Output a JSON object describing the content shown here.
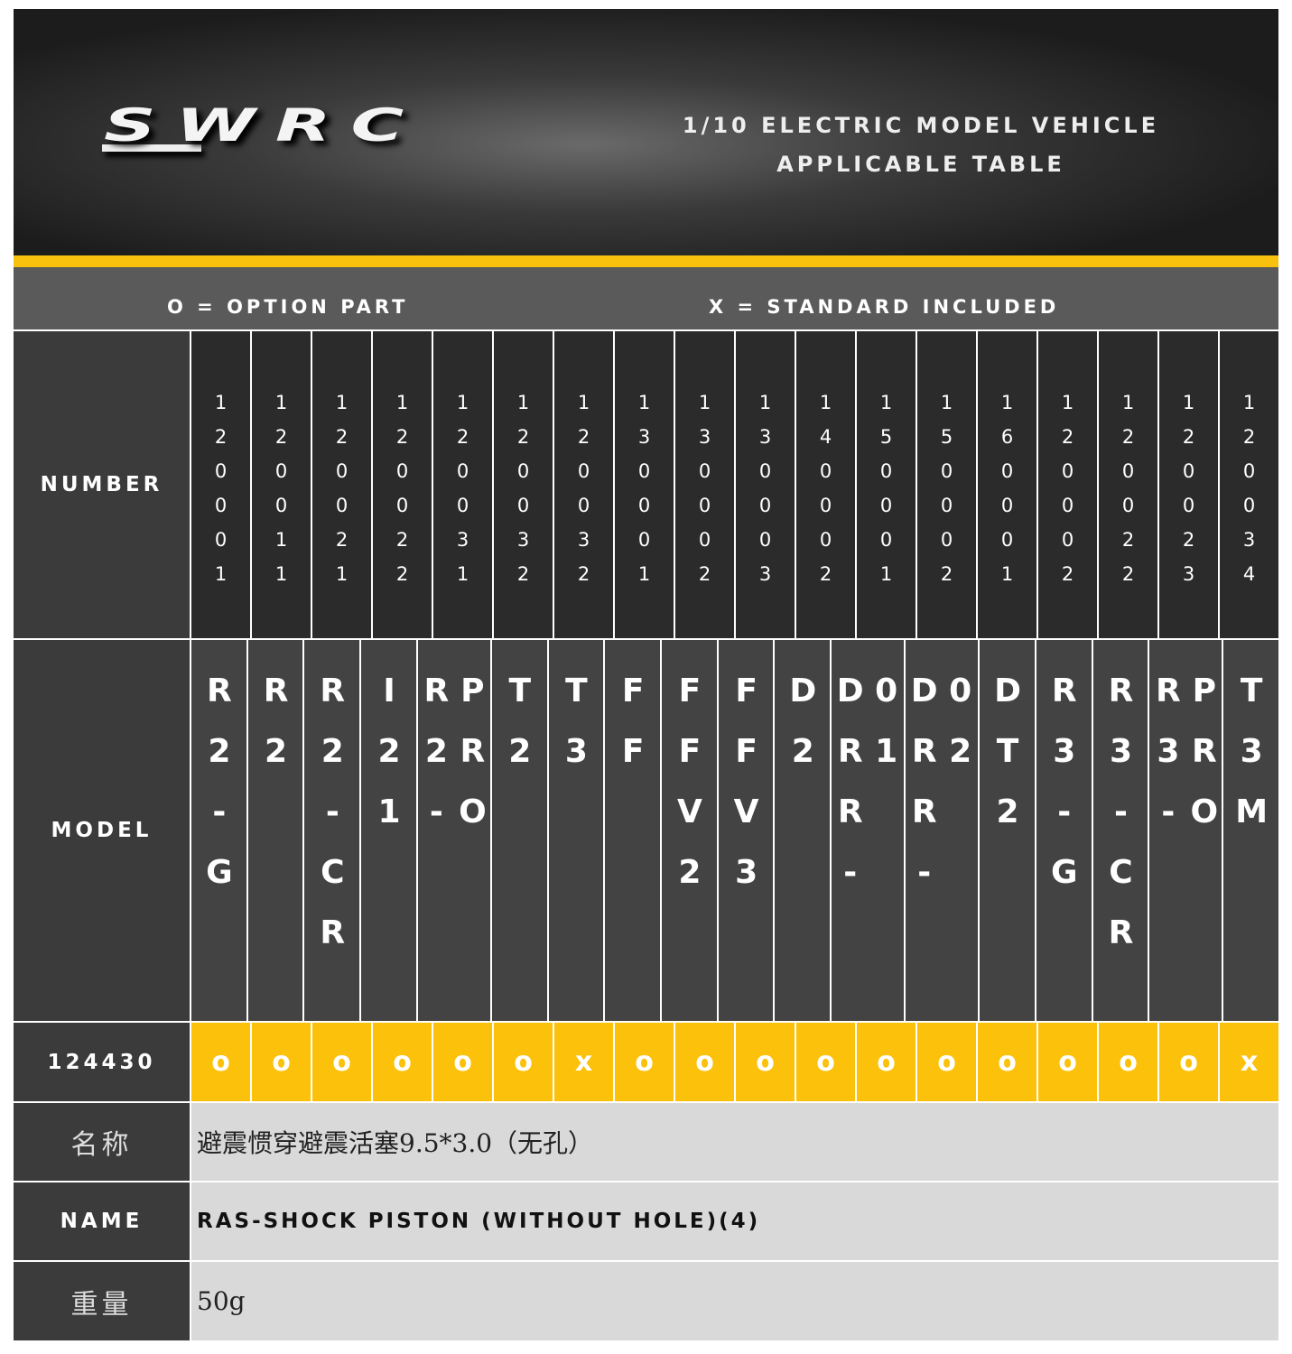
{
  "header": {
    "logo": "SWRC",
    "title_line1": "1/10 ELECTRIC MODEL VEHICLE",
    "title_line2": "APPLICABLE TABLE",
    "accent_color": "#f7c10d"
  },
  "legend": {
    "option": "O = OPTION PART",
    "standard": "X = STANDARD INCLUDED"
  },
  "table": {
    "number_label": "NUMBER",
    "model_label": "MODEL",
    "numbers": [
      "120001",
      "120011",
      "120021",
      "120022",
      "120031",
      "120032",
      "120032",
      "130001",
      "130002",
      "130003",
      "140002",
      "150001",
      "150002",
      "160001",
      "120002",
      "120022",
      "120023",
      "120034"
    ],
    "models": [
      "R2-G",
      "R2",
      "R2-CR",
      "I21",
      "R2-PRO",
      "T2",
      "T3",
      "FF",
      "FFV2",
      "FFV3",
      "D2",
      "DRR-01",
      "DRR-02",
      "DT2",
      "R3-G",
      "R3-CR",
      "R3-PRO",
      "T3M"
    ],
    "part_number": "124430",
    "values": [
      "o",
      "o",
      "o",
      "o",
      "o",
      "o",
      "x",
      "o",
      "o",
      "o",
      "o",
      "o",
      "o",
      "o",
      "o",
      "o",
      "o",
      "x"
    ]
  },
  "info": {
    "name_cn_label": "名称",
    "name_cn": "避震惯穿避震活塞9.5*3.0（无孔）",
    "name_en_label": "NAME",
    "name_en": "RAS-SHOCK PISTON (WITHOUT HOLE)(4)",
    "weight_label": "重量",
    "weight": "50g"
  }
}
